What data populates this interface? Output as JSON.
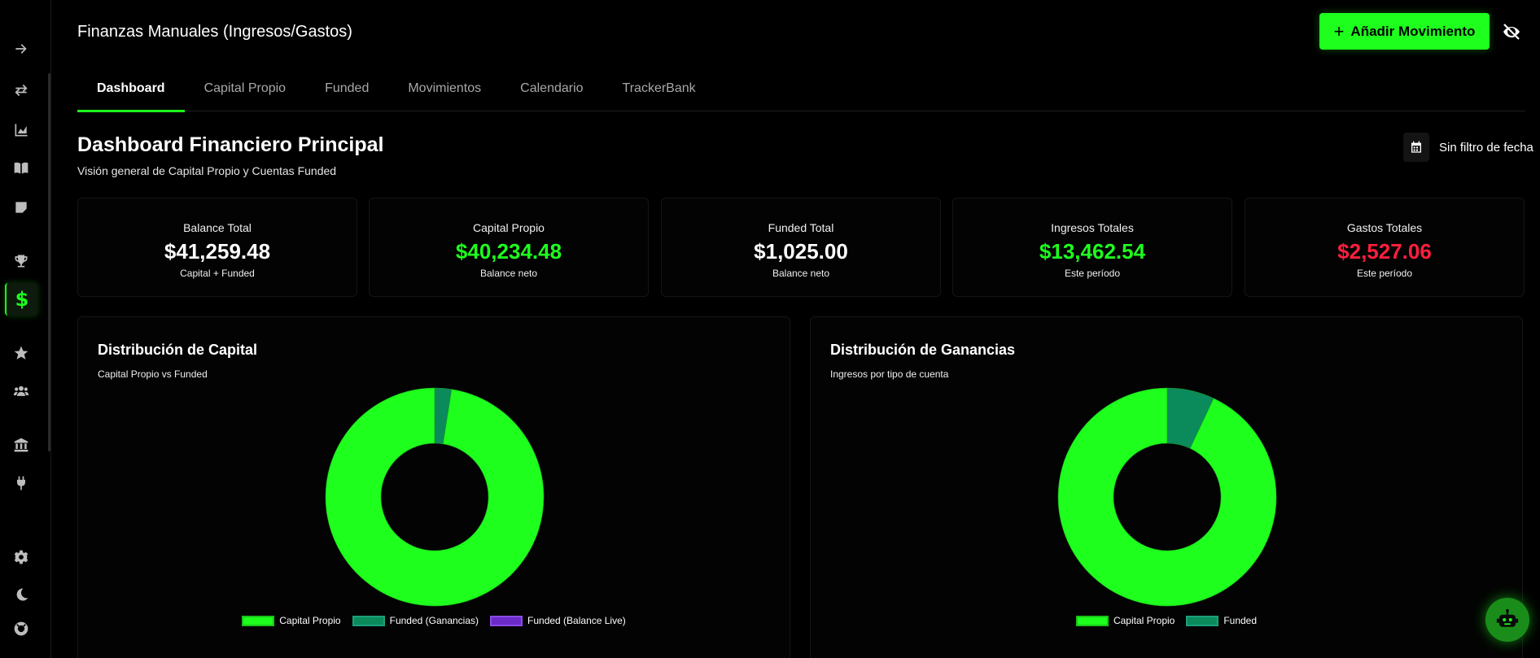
{
  "header": {
    "title": "Finanzas Manuales (Ingresos/Gastos)",
    "add_button_label": "Añadir Movimiento",
    "add_button_icon": "plus-icon",
    "hide_icon": "eye-slash-icon"
  },
  "sidebar": {
    "items": [
      {
        "icon": "arrow-right-icon"
      },
      {
        "icon": "exchange-icon"
      },
      {
        "icon": "chart-area-icon"
      },
      {
        "icon": "book-icon"
      },
      {
        "icon": "sticky-note-icon"
      },
      {
        "icon": "trophy-icon"
      },
      {
        "icon": "dollar-icon",
        "active": true
      },
      {
        "icon": "star-icon"
      },
      {
        "icon": "users-icon"
      },
      {
        "icon": "bank-icon"
      },
      {
        "icon": "plug-icon"
      },
      {
        "icon": "gear-icon"
      },
      {
        "icon": "moon-icon"
      },
      {
        "icon": "lifebuoy-icon"
      }
    ]
  },
  "tabs": [
    {
      "label": "Dashboard",
      "active": true
    },
    {
      "label": "Capital Propio"
    },
    {
      "label": "Funded"
    },
    {
      "label": "Movimientos"
    },
    {
      "label": "Calendario"
    },
    {
      "label": "TrackerBank"
    }
  ],
  "page": {
    "title": "Dashboard Financiero Principal",
    "subtitle": "Visión general de Capital Propio y Cuentas Funded",
    "date_filter": "Sin filtro de fecha"
  },
  "kpis": [
    {
      "label": "Balance Total",
      "value": "$41,259.48",
      "sub": "Capital + Funded",
      "color": "#ffffff"
    },
    {
      "label": "Capital Propio",
      "value": "$40,234.48",
      "sub": "Balance neto",
      "color": "#1eff1e"
    },
    {
      "label": "Funded Total",
      "value": "$1,025.00",
      "sub": "Balance neto",
      "color": "#ffffff"
    },
    {
      "label": "Ingresos Totales",
      "value": "$13,462.54",
      "sub": "Este período",
      "color": "#1eff1e"
    },
    {
      "label": "Gastos Totales",
      "value": "$2,527.06",
      "sub": "Este período",
      "color": "#ff1f3d"
    }
  ],
  "colors": {
    "accent": "#1eff1e",
    "funded": "#0b8a5c",
    "funded_live": "#6a2bc6",
    "negative": "#ff1f3d"
  },
  "chart_data": [
    {
      "type": "pie",
      "title": "Distribución de Capital",
      "subtitle": "Capital Propio vs Funded",
      "categories": [
        "Capital Propio",
        "Funded (Ganancias)",
        "Funded (Balance Live)"
      ],
      "values": [
        40234.48,
        1025.0,
        0
      ],
      "colors": [
        "#1eff1e",
        "#0b8a5c",
        "#6a2bc6"
      ]
    },
    {
      "type": "pie",
      "title": "Distribución de Ganancias",
      "subtitle": "Ingresos por tipo de cuenta",
      "categories": [
        "Capital Propio",
        "Funded"
      ],
      "values": [
        93,
        7
      ],
      "colors": [
        "#1eff1e",
        "#0b8a5c"
      ]
    }
  ]
}
